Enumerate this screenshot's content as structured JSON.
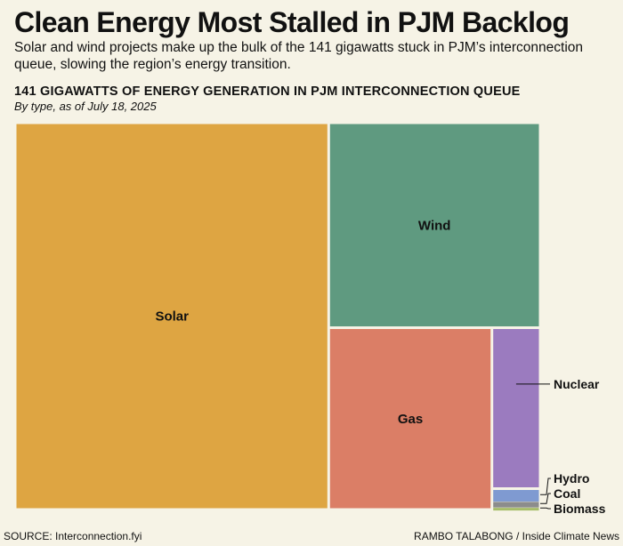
{
  "headline": "Clean Energy Most Stalled in PJM Backlog",
  "dek": "Solar and wind projects make up the bulk of the 141 gigawatts stuck in PJM’s interconnection queue, slowing the region’s energy transition.",
  "footer": {
    "source": "SOURCE: Interconnection.fyi",
    "credit": "RAMBO TALABONG / Inside Climate News"
  },
  "colors": {
    "background": "#f6f3e6",
    "Solar": "#dea542",
    "Wind": "#5f9a80",
    "Gas": "#db7e66",
    "Nuclear": "#9b7bbf",
    "Hydro": "#7f9ad1",
    "Coal": "#8c8c8c",
    "Biomass": "#a7bd6a"
  },
  "chart_data": {
    "type": "treemap",
    "title": "141 GIGAWATTS OF ENERGY GENERATION IN PJM INTERCONNECTION QUEUE",
    "subtitle": "By type, as of July 18, 2025",
    "unit": "GW",
    "total": 141,
    "categories": [
      "Solar",
      "Wind",
      "Gas",
      "Nuclear",
      "Hydro",
      "Coal",
      "Biomass"
    ],
    "values": [
      84.2,
      30.1,
      20.6,
      5.4,
      0.4,
      0.2,
      0.1
    ],
    "inside_labels": [
      "Solar",
      "Wind",
      "Gas"
    ],
    "callout_labels": [
      "Nuclear",
      "Hydro",
      "Coal",
      "Biomass"
    ]
  }
}
